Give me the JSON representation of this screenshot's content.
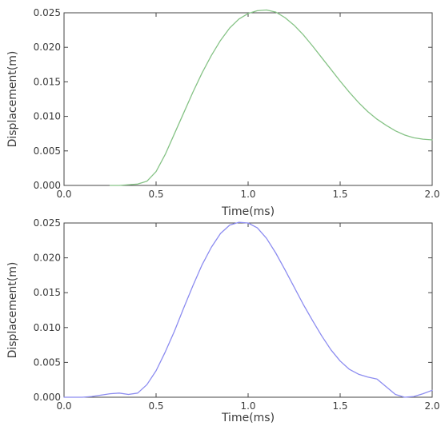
{
  "chart_data": [
    {
      "type": "line",
      "xlabel": "Time(ms)",
      "ylabel": "Displacement(m)",
      "xlim": [
        0.0,
        2.0
      ],
      "ylim": [
        0.0,
        0.025
      ],
      "xticks": [
        "0.0",
        "0.5",
        "1.0",
        "1.5",
        "2.0"
      ],
      "yticks": [
        "0.000",
        "0.005",
        "0.010",
        "0.015",
        "0.020",
        "0.025"
      ],
      "grid": false,
      "series": [
        {
          "color": "#86c386",
          "x": [
            0.25,
            0.3,
            0.35,
            0.4,
            0.45,
            0.5,
            0.55,
            0.6,
            0.65,
            0.7,
            0.75,
            0.8,
            0.85,
            0.9,
            0.95,
            1.0,
            1.05,
            1.1,
            1.15,
            1.2,
            1.25,
            1.3,
            1.35,
            1.4,
            1.45,
            1.5,
            1.55,
            1.6,
            1.65,
            1.7,
            1.75,
            1.8,
            1.85,
            1.9,
            1.95,
            2.0
          ],
          "y": [
            0.0,
            0.0,
            0.0001,
            0.0002,
            0.0006,
            0.002,
            0.0045,
            0.0075,
            0.0105,
            0.0135,
            0.0163,
            0.0188,
            0.021,
            0.0228,
            0.0241,
            0.0249,
            0.0253,
            0.0254,
            0.0251,
            0.0243,
            0.0232,
            0.0218,
            0.0202,
            0.0185,
            0.0168,
            0.0151,
            0.0135,
            0.012,
            0.0107,
            0.0096,
            0.0087,
            0.0079,
            0.0073,
            0.0069,
            0.0067,
            0.0066
          ]
        }
      ]
    },
    {
      "type": "line",
      "xlabel": "Time(ms)",
      "ylabel": "Displacement(m)",
      "xlim": [
        0.0,
        2.0
      ],
      "ylim": [
        0.0,
        0.025
      ],
      "xticks": [
        "0.0",
        "0.5",
        "1.0",
        "1.5",
        "2.0"
      ],
      "yticks": [
        "0.000",
        "0.005",
        "0.010",
        "0.015",
        "0.020",
        "0.025"
      ],
      "grid": false,
      "series": [
        {
          "color": "#8c8cf0",
          "x": [
            0.0,
            0.05,
            0.1,
            0.15,
            0.2,
            0.25,
            0.3,
            0.35,
            0.4,
            0.45,
            0.5,
            0.55,
            0.6,
            0.65,
            0.7,
            0.75,
            0.8,
            0.85,
            0.9,
            0.95,
            1.0,
            1.05,
            1.1,
            1.15,
            1.2,
            1.25,
            1.3,
            1.35,
            1.4,
            1.45,
            1.5,
            1.55,
            1.6,
            1.65,
            1.7,
            1.75,
            1.8,
            1.85,
            1.9,
            1.95,
            2.0
          ],
          "y": [
            0.0,
            0.0,
            0.0,
            0.0001,
            0.0003,
            0.0005,
            0.0006,
            0.0004,
            0.0006,
            0.0018,
            0.0038,
            0.0065,
            0.0095,
            0.0128,
            0.016,
            0.019,
            0.0215,
            0.0235,
            0.0247,
            0.0251,
            0.025,
            0.0243,
            0.0228,
            0.0207,
            0.0183,
            0.0158,
            0.0133,
            0.011,
            0.0088,
            0.0068,
            0.0052,
            0.004,
            0.0033,
            0.0029,
            0.0026,
            0.0015,
            0.0004,
            0.0,
            0.0001,
            0.0005,
            0.001
          ]
        }
      ]
    }
  ]
}
